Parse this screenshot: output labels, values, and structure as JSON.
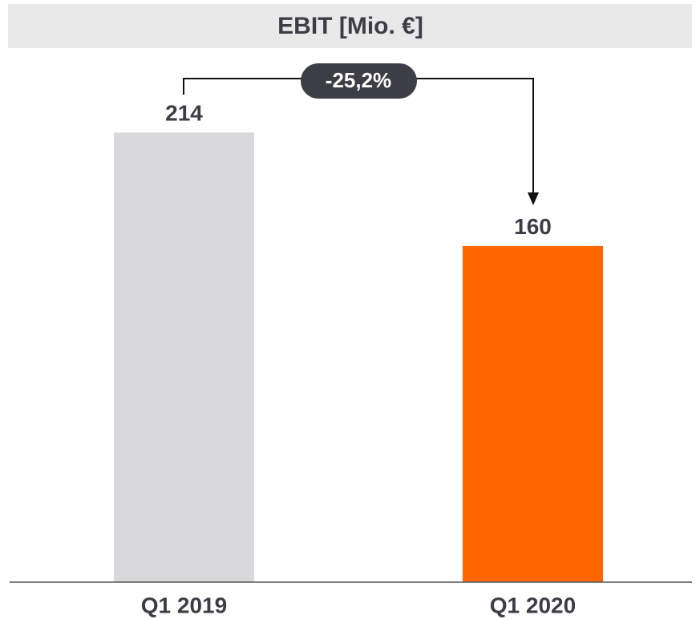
{
  "chart_data": {
    "type": "bar",
    "title": "EBIT [Mio. €]",
    "categories": [
      "Q1 2019",
      "Q1 2020"
    ],
    "values": [
      214,
      160
    ],
    "colors": [
      "#d9d9dc",
      "#ff6600"
    ],
    "annotation": "-25,2%"
  }
}
